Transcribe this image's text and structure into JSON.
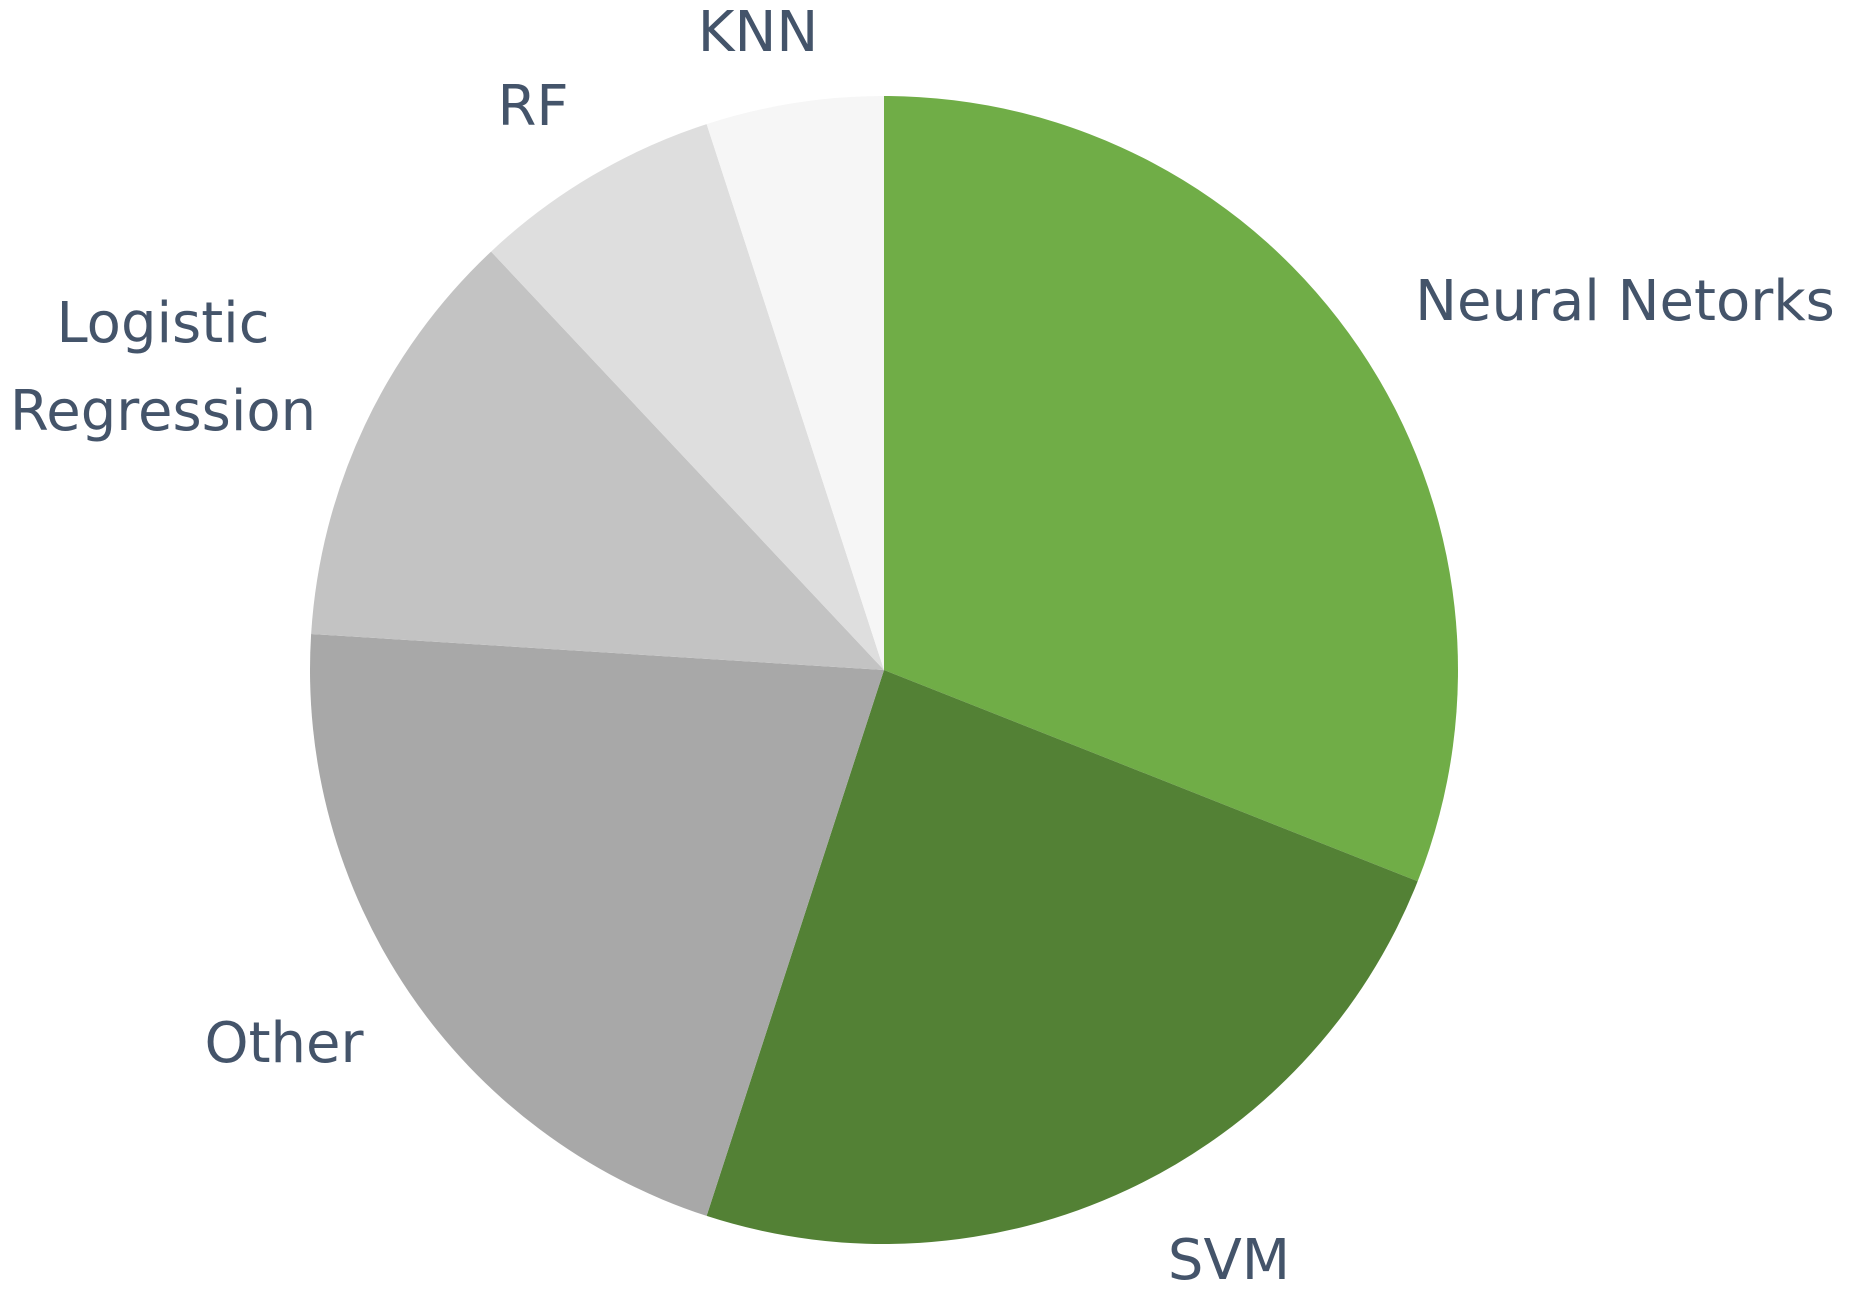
{
  "chart_data": {
    "type": "pie",
    "categories": [
      "Neural Netorks",
      "SVM",
      "Other",
      "Logistic Regression",
      "RF",
      "KNN"
    ],
    "values": [
      31,
      24,
      21,
      12,
      7,
      5
    ],
    "colors": [
      "#70ad47",
      "#538135",
      "#a8a8a8",
      "#c3c3c3",
      "#dedede",
      "#f6f6f6"
    ]
  }
}
